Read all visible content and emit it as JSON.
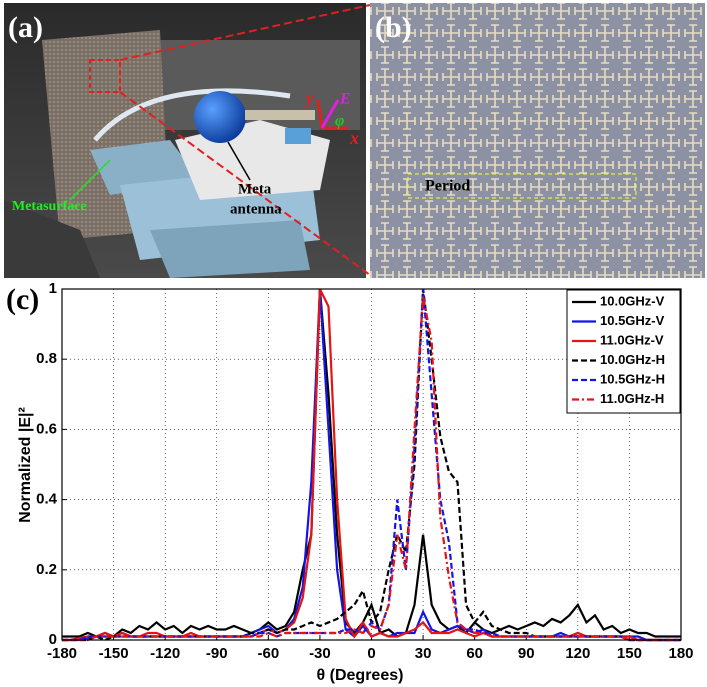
{
  "panel_labels": [
    "(a)",
    "(b)",
    "(c)"
  ],
  "photo_a": {
    "metasurface_label": "Metasurface",
    "antenna_label": [
      "Meta",
      "antenna"
    ],
    "axis_labels": [
      "y",
      "E",
      "φ",
      "x"
    ]
  },
  "photo_b": {
    "period_label": "Period"
  },
  "chart_data": {
    "type": "line",
    "x_label": "θ (Degrees)",
    "y_label": "Normalized |E|²",
    "xlim": [
      -180,
      180
    ],
    "ylim": [
      0,
      1
    ],
    "xticks": [
      -180,
      -150,
      -120,
      -90,
      -60,
      -30,
      0,
      30,
      60,
      90,
      120,
      150,
      180
    ],
    "yticks": [
      0,
      0.2,
      0.4,
      0.6,
      0.8,
      1
    ],
    "grid": true,
    "legend": "upper right",
    "x": [
      -180,
      -175,
      -170,
      -165,
      -160,
      -155,
      -150,
      -145,
      -140,
      -135,
      -130,
      -125,
      -120,
      -115,
      -110,
      -105,
      -100,
      -95,
      -90,
      -85,
      -80,
      -75,
      -70,
      -65,
      -60,
      -55,
      -50,
      -45,
      -40,
      -35,
      -30,
      -25,
      -20,
      -15,
      -10,
      -5,
      0,
      5,
      10,
      15,
      20,
      25,
      30,
      35,
      40,
      45,
      50,
      55,
      60,
      65,
      70,
      75,
      80,
      85,
      90,
      95,
      100,
      105,
      110,
      115,
      120,
      125,
      130,
      135,
      140,
      145,
      150,
      155,
      160,
      165,
      170,
      175,
      180
    ],
    "series": [
      {
        "name": "10.0GHz-V",
        "color": "#000000",
        "style": "solid",
        "values": [
          0.01,
          0.01,
          0.01,
          0.02,
          0.01,
          0.02,
          0.01,
          0.03,
          0.02,
          0.04,
          0.03,
          0.05,
          0.03,
          0.04,
          0.02,
          0.04,
          0.03,
          0.04,
          0.03,
          0.03,
          0.04,
          0.03,
          0.02,
          0.03,
          0.05,
          0.03,
          0.04,
          0.08,
          0.2,
          0.3,
          1,
          0.7,
          0.3,
          0.05,
          0.02,
          0.05,
          0.1,
          0.02,
          0.03,
          0.01,
          0.02,
          0.1,
          0.3,
          0.1,
          0.05,
          0.03,
          0.04,
          0.02,
          0.05,
          0.03,
          0.02,
          0.03,
          0.04,
          0.03,
          0.04,
          0.05,
          0.04,
          0.06,
          0.05,
          0.07,
          0.1,
          0.05,
          0.07,
          0.03,
          0.04,
          0.02,
          0.03,
          0.02,
          0.02,
          0.01,
          0.01,
          0.01,
          0.01
        ]
      },
      {
        "name": "10.5GHz-V",
        "color": "#1414e6",
        "style": "solid",
        "values": [
          0,
          0,
          0.005,
          0.005,
          0.01,
          0.01,
          0.01,
          0.02,
          0.01,
          0.01,
          0.01,
          0.01,
          0.01,
          0.01,
          0.01,
          0.01,
          0.01,
          0.01,
          0.01,
          0.01,
          0.01,
          0.01,
          0.02,
          0.03,
          0.04,
          0.02,
          0.03,
          0.06,
          0.15,
          0.45,
          1,
          0.6,
          0.2,
          0.03,
          0.01,
          0.04,
          0.01,
          0.02,
          0.01,
          0.02,
          0.02,
          0.02,
          0.08,
          0.03,
          0.02,
          0.03,
          0.04,
          0.03,
          0.02,
          0.03,
          0.01,
          0.01,
          0.01,
          0.01,
          0.01,
          0.01,
          0.01,
          0.01,
          0.02,
          0.01,
          0.02,
          0.01,
          0.01,
          0.01,
          0.01,
          0.01,
          0.01,
          0.01,
          0,
          0,
          0,
          0,
          0
        ]
      },
      {
        "name": "11.0GHz-V",
        "color": "#e61414",
        "style": "solid",
        "values": [
          0,
          0,
          0.005,
          0.01,
          0.01,
          0.02,
          0.01,
          0.02,
          0.01,
          0.01,
          0.02,
          0.02,
          0.01,
          0.01,
          0.01,
          0.02,
          0.01,
          0.01,
          0.01,
          0.01,
          0.01,
          0.01,
          0.01,
          0.02,
          0.03,
          0.02,
          0.03,
          0.05,
          0.12,
          0.3,
          1,
          0.95,
          0.4,
          0.06,
          0.01,
          0.05,
          0.01,
          0.02,
          0.01,
          0.01,
          0.02,
          0.03,
          0.05,
          0.02,
          0.02,
          0.02,
          0.03,
          0.02,
          0.01,
          0.02,
          0.01,
          0.01,
          0.01,
          0.01,
          0.01,
          0.01,
          0.01,
          0.01,
          0.01,
          0.01,
          0.02,
          0.01,
          0.01,
          0.01,
          0.01,
          0.01,
          0.01,
          0,
          0,
          0,
          0,
          0,
          0
        ]
      },
      {
        "name": "10.0GHz-H",
        "color": "#000000",
        "style": "dashed",
        "values": [
          0,
          0,
          0,
          0,
          0.01,
          0,
          0.01,
          0.01,
          0.01,
          0.01,
          0.01,
          0.01,
          0.01,
          0.01,
          0.01,
          0.01,
          0.01,
          0.01,
          0.01,
          0.01,
          0.01,
          0.01,
          0.02,
          0.02,
          0.03,
          0.02,
          0.03,
          0.03,
          0.04,
          0.05,
          0.04,
          0.05,
          0.06,
          0.08,
          0.1,
          0.14,
          0.05,
          0.08,
          0.2,
          0.3,
          0.25,
          0.5,
          1,
          0.8,
          0.58,
          0.48,
          0.45,
          0.1,
          0.05,
          0.08,
          0.04,
          0.03,
          0.02,
          0.02,
          0.02,
          0.01,
          0.01,
          0.01,
          0.01,
          0.01,
          0.01,
          0.01,
          0.01,
          0.01,
          0.01,
          0.01,
          0,
          0,
          0,
          0,
          0,
          0,
          0
        ]
      },
      {
        "name": "10.5GHz-H",
        "color": "#1414e6",
        "style": "dashed",
        "values": [
          0,
          0,
          0,
          0.01,
          0.01,
          0.01,
          0.01,
          0.01,
          0.01,
          0.01,
          0.01,
          0.01,
          0.01,
          0.01,
          0.01,
          0.01,
          0.01,
          0.01,
          0.01,
          0.01,
          0.01,
          0.01,
          0.01,
          0.02,
          0.02,
          0.01,
          0.02,
          0.02,
          0.02,
          0.02,
          0.02,
          0.02,
          0.02,
          0.03,
          0.03,
          0.02,
          0.05,
          0.03,
          0.1,
          0.4,
          0.2,
          0.55,
          1,
          0.7,
          0.4,
          0.28,
          0.05,
          0.03,
          0.03,
          0.02,
          0.02,
          0.01,
          0.01,
          0.01,
          0.01,
          0.01,
          0.01,
          0.01,
          0.01,
          0.01,
          0.01,
          0.01,
          0.01,
          0.01,
          0.01,
          0.01,
          0,
          0,
          0,
          0,
          0,
          0,
          0
        ]
      },
      {
        "name": "11.0GHz-H",
        "color": "#e61414",
        "style": "dashdot",
        "values": [
          0,
          0,
          0,
          0,
          0.01,
          0.01,
          0.01,
          0.01,
          0.01,
          0.01,
          0.01,
          0.01,
          0.01,
          0.01,
          0.01,
          0.01,
          0.01,
          0.01,
          0.01,
          0.01,
          0.01,
          0.01,
          0.01,
          0.01,
          0.02,
          0.01,
          0.02,
          0.02,
          0.02,
          0.02,
          0.02,
          0.02,
          0.02,
          0.02,
          0.03,
          0.02,
          0.04,
          0.03,
          0.1,
          0.3,
          0.2,
          0.6,
          0.98,
          0.85,
          0.35,
          0.18,
          0.05,
          0.03,
          0.02,
          0.02,
          0.01,
          0.01,
          0.01,
          0.01,
          0.01,
          0.01,
          0.01,
          0.01,
          0.01,
          0.01,
          0.01,
          0.01,
          0.01,
          0.01,
          0.01,
          0.01,
          0,
          0,
          0,
          0,
          0,
          0,
          0
        ]
      }
    ]
  }
}
